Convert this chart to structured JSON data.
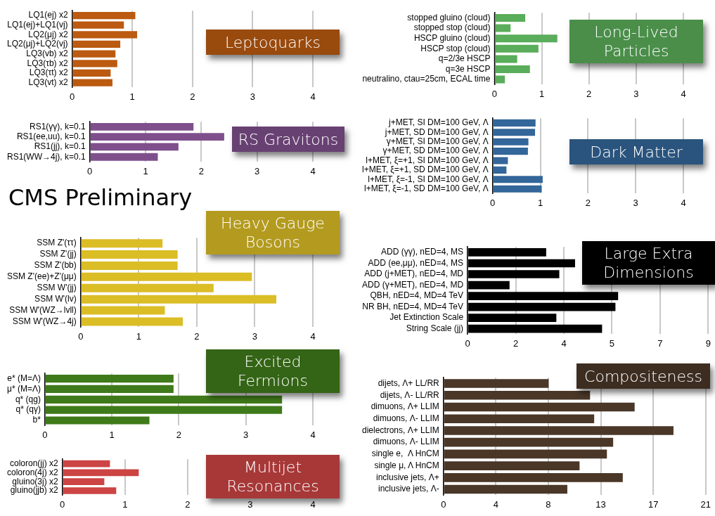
{
  "chart_data": [
    {
      "type": "bar",
      "orientation": "horizontal",
      "title": "Leptoquarks",
      "categories": [
        "LQ1(ej) x2",
        "LQ1(ej)+LQ1(vj)",
        "LQ2(μj) x2",
        "LQ2(μj)+LQ2(vj)",
        "LQ3(vb) x2",
        "LQ3(τb) x2",
        "LQ3(τt) x2",
        "LQ3(vt) x2"
      ],
      "series": [
        {
          "color": "#bb5a10",
          "values": [
            1.05,
            0.86,
            1.08,
            0.8,
            0.72,
            0.75,
            0.64,
            0.67
          ]
        }
      ],
      "xlim": [
        0,
        4
      ],
      "xticks": [
        0,
        1,
        2,
        3,
        4
      ],
      "grid": "x"
    },
    {
      "type": "bar",
      "orientation": "horizontal",
      "title": "Long-Lived Particles",
      "categories": [
        "stopped gluino (cloud)",
        "stopped stop (cloud)",
        "HSCP gluino (cloud)",
        "HSCP stop (cloud)",
        "q=2/3e HSCP",
        "q=3e HSCP",
        "neutralino, ctau=25cm, ECAL time"
      ],
      "series": [
        {
          "color": "#5aad5a",
          "values": [
            0.65,
            0.34,
            1.33,
            0.93,
            0.48,
            0.75,
            0.22
          ]
        }
      ],
      "xlim": [
        0,
        4
      ],
      "xticks": [
        0,
        1,
        2,
        3,
        4
      ],
      "grid": "x"
    },
    {
      "type": "bar",
      "orientation": "horizontal",
      "title": "RS Gravitons",
      "categories": [
        "RS1(γγ), k=0.1",
        "RS1(ee,uu), k=0.1",
        "RS1(jj), k=0.1",
        "RS1(WW→4j), k=0.1"
      ],
      "series": [
        {
          "color": "#7f4f8c",
          "values": [
            1.86,
            2.41,
            1.59,
            1.22
          ]
        }
      ],
      "xlim": [
        0,
        4
      ],
      "xticks": [
        0,
        1,
        2,
        3,
        4
      ],
      "grid": "x"
    },
    {
      "type": "bar",
      "orientation": "horizontal",
      "title": "Dark Matter",
      "categories": [
        "j+MET, SI DM=100 GeV, Λ",
        "j+MET, SD DM=100 GeV, Λ",
        "γ+MET, SI DM=100 GeV, Λ",
        "γ+MET, SD DM=100 GeV, Λ",
        "l+MET, ξ=+1, SI DM=100 GeV, Λ",
        "l+MET, ξ=+1, SD DM=100 GeV, Λ",
        "l+MET, ξ=-1, SI DM=100 GeV, Λ",
        "l+MET, ξ=-1, SD DM=100 GeV, Λ"
      ],
      "series": [
        {
          "color": "#336699",
          "values": [
            0.9,
            0.89,
            0.75,
            0.74,
            0.32,
            0.29,
            1.05,
            1.03
          ]
        }
      ],
      "xlim": [
        0,
        4
      ],
      "xticks": [
        0,
        1,
        2,
        3,
        4
      ],
      "grid": "x"
    },
    {
      "type": "other",
      "title": "CMS Preliminary"
    },
    {
      "type": "bar",
      "orientation": "horizontal",
      "title": "Heavy Gauge Bosons",
      "categories": [
        "SSM Z'(ττ)",
        "SSM Z'(jj)",
        "SSM Z'(bb)",
        "SSM Z'(ee)+Z'(μμ)",
        "SSM W'(jj)",
        "SSM W'(lv)",
        "SSM W'(WZ→lvll)",
        "SSM W'(WZ→4j)"
      ],
      "series": [
        {
          "color": "#dbbd26",
          "values": [
            1.41,
            1.67,
            1.67,
            2.95,
            2.29,
            3.37,
            1.45,
            1.76
          ]
        }
      ],
      "xlim": [
        0,
        4
      ],
      "xticks": [
        0,
        1,
        2,
        3,
        4
      ],
      "grid": "x"
    },
    {
      "type": "bar",
      "orientation": "horizontal",
      "title": "Large Extra Dimensions",
      "categories": [
        "ADD (γγ), nED=4, MS",
        "ADD (ee,μμ), nED=4, MS",
        "ADD (j+MET), nED=4, MD",
        "ADD (γ+MET), nED=4, MD",
        "QBH, nED=4, MD=4 TeV",
        "NR BH, nED=4, MD=4 TeV",
        "Jet Extinction Scale",
        "String Scale (jj)"
      ],
      "series": [
        {
          "color": "#000000",
          "values": [
            2.94,
            4.02,
            3.43,
            1.57,
            5.63,
            5.53,
            3.32,
            5.03
          ]
        }
      ],
      "xlim": [
        0,
        9
      ],
      "xticks": [
        0,
        {
          "value": 1.8,
          "label": "2"
        },
        {
          "value": 3.6,
          "label": "4"
        },
        {
          "value": 5.4,
          "label": "5"
        },
        {
          "value": 7.2,
          "label": "7"
        },
        9
      ],
      "grid": "x"
    },
    {
      "type": "bar",
      "orientation": "horizontal",
      "title": "Excited Fermions",
      "categories": [
        "e* (M=Λ)",
        "μ* (M=Λ)",
        "q* (qg)",
        "q* (qγ)",
        "b*"
      ],
      "series": [
        {
          "color": "#3f7a1a",
          "values": [
            1.92,
            1.92,
            3.54,
            3.54,
            1.56
          ]
        }
      ],
      "xlim": [
        0,
        4
      ],
      "xticks": [
        0,
        1,
        2,
        3,
        4
      ],
      "grid": "x"
    },
    {
      "type": "bar",
      "orientation": "horizontal",
      "title": "Compositeness",
      "categories": [
        "dijets, Λ+ LL/RR",
        "dijets, Λ- LL/RR",
        "dimuons, Λ+ LLIM",
        "dimuons, Λ- LLIM",
        "dielectrons, Λ+ LLIM",
        "dimuons, Λ- LLIM",
        "single e,  Λ HnCM",
        "single μ, Λ HnCM",
        "inclusive jets, Λ+",
        "inclusive jets, Λ-"
      ],
      "series": [
        {
          "color": "#4a3728",
          "values": [
            8.42,
            11.74,
            15.31,
            12.07,
            18.42,
            13.59,
            13.09,
            10.9,
            14.36,
            9.92
          ]
        }
      ],
      "xlim": [
        0,
        21
      ],
      "xticks": [
        0,
        {
          "value": 4.2,
          "label": "4"
        },
        {
          "value": 8.4,
          "label": "8"
        },
        {
          "value": 12.6,
          "label": "13"
        },
        {
          "value": 16.8,
          "label": "17"
        },
        21
      ],
      "grid": "x"
    },
    {
      "type": "bar",
      "orientation": "horizontal",
      "title": "Multijet Resonances",
      "categories": [
        "coloron(jj) x2",
        "coloron(4j) x2",
        "gluino(3j) x2",
        "gluino(jjb) x2"
      ],
      "series": [
        {
          "color": "#cc4444",
          "values": [
            0.76,
            1.22,
            0.67,
            0.86
          ]
        }
      ],
      "xlim": [
        0,
        4
      ],
      "xticks": [
        0,
        1,
        2,
        3,
        4
      ],
      "grid": "x"
    }
  ]
}
